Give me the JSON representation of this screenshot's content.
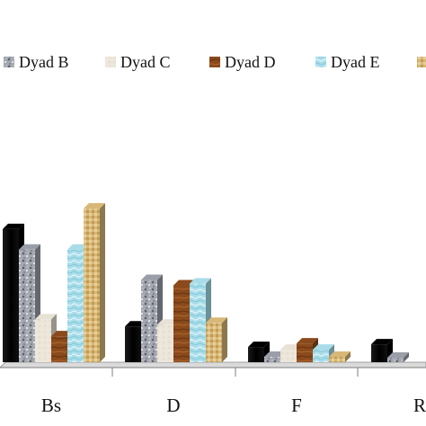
{
  "chart_data": {
    "type": "bar",
    "categories": [
      "Bs",
      "D",
      "F",
      "R"
    ],
    "series": [
      {
        "name": "",
        "values": [
          149,
          40,
          17,
          20
        ],
        "color": "#000000",
        "pattern": "solid-black"
      },
      {
        "name": "Dyad B",
        "values": [
          126,
          92,
          6,
          5
        ],
        "color": "#9a9ea8",
        "pattern": "granite"
      },
      {
        "name": "Dyad C",
        "values": [
          48,
          42,
          14,
          0
        ],
        "color": "#e8e2d6",
        "pattern": "paper"
      },
      {
        "name": "Dyad D",
        "values": [
          29,
          86,
          21,
          0
        ],
        "color": "#8b4a1c",
        "pattern": "wood"
      },
      {
        "name": "Dyad E",
        "values": [
          126,
          88,
          14,
          0
        ],
        "color": "#a8dce8",
        "pattern": "water"
      },
      {
        "name": "",
        "values": [
          172,
          44,
          6,
          0
        ],
        "color": "#d8b878",
        "pattern": "woven"
      }
    ],
    "legend_position": "top",
    "xlabel": "",
    "ylabel": "",
    "ylim": [
      0,
      200
    ],
    "grid": false
  }
}
